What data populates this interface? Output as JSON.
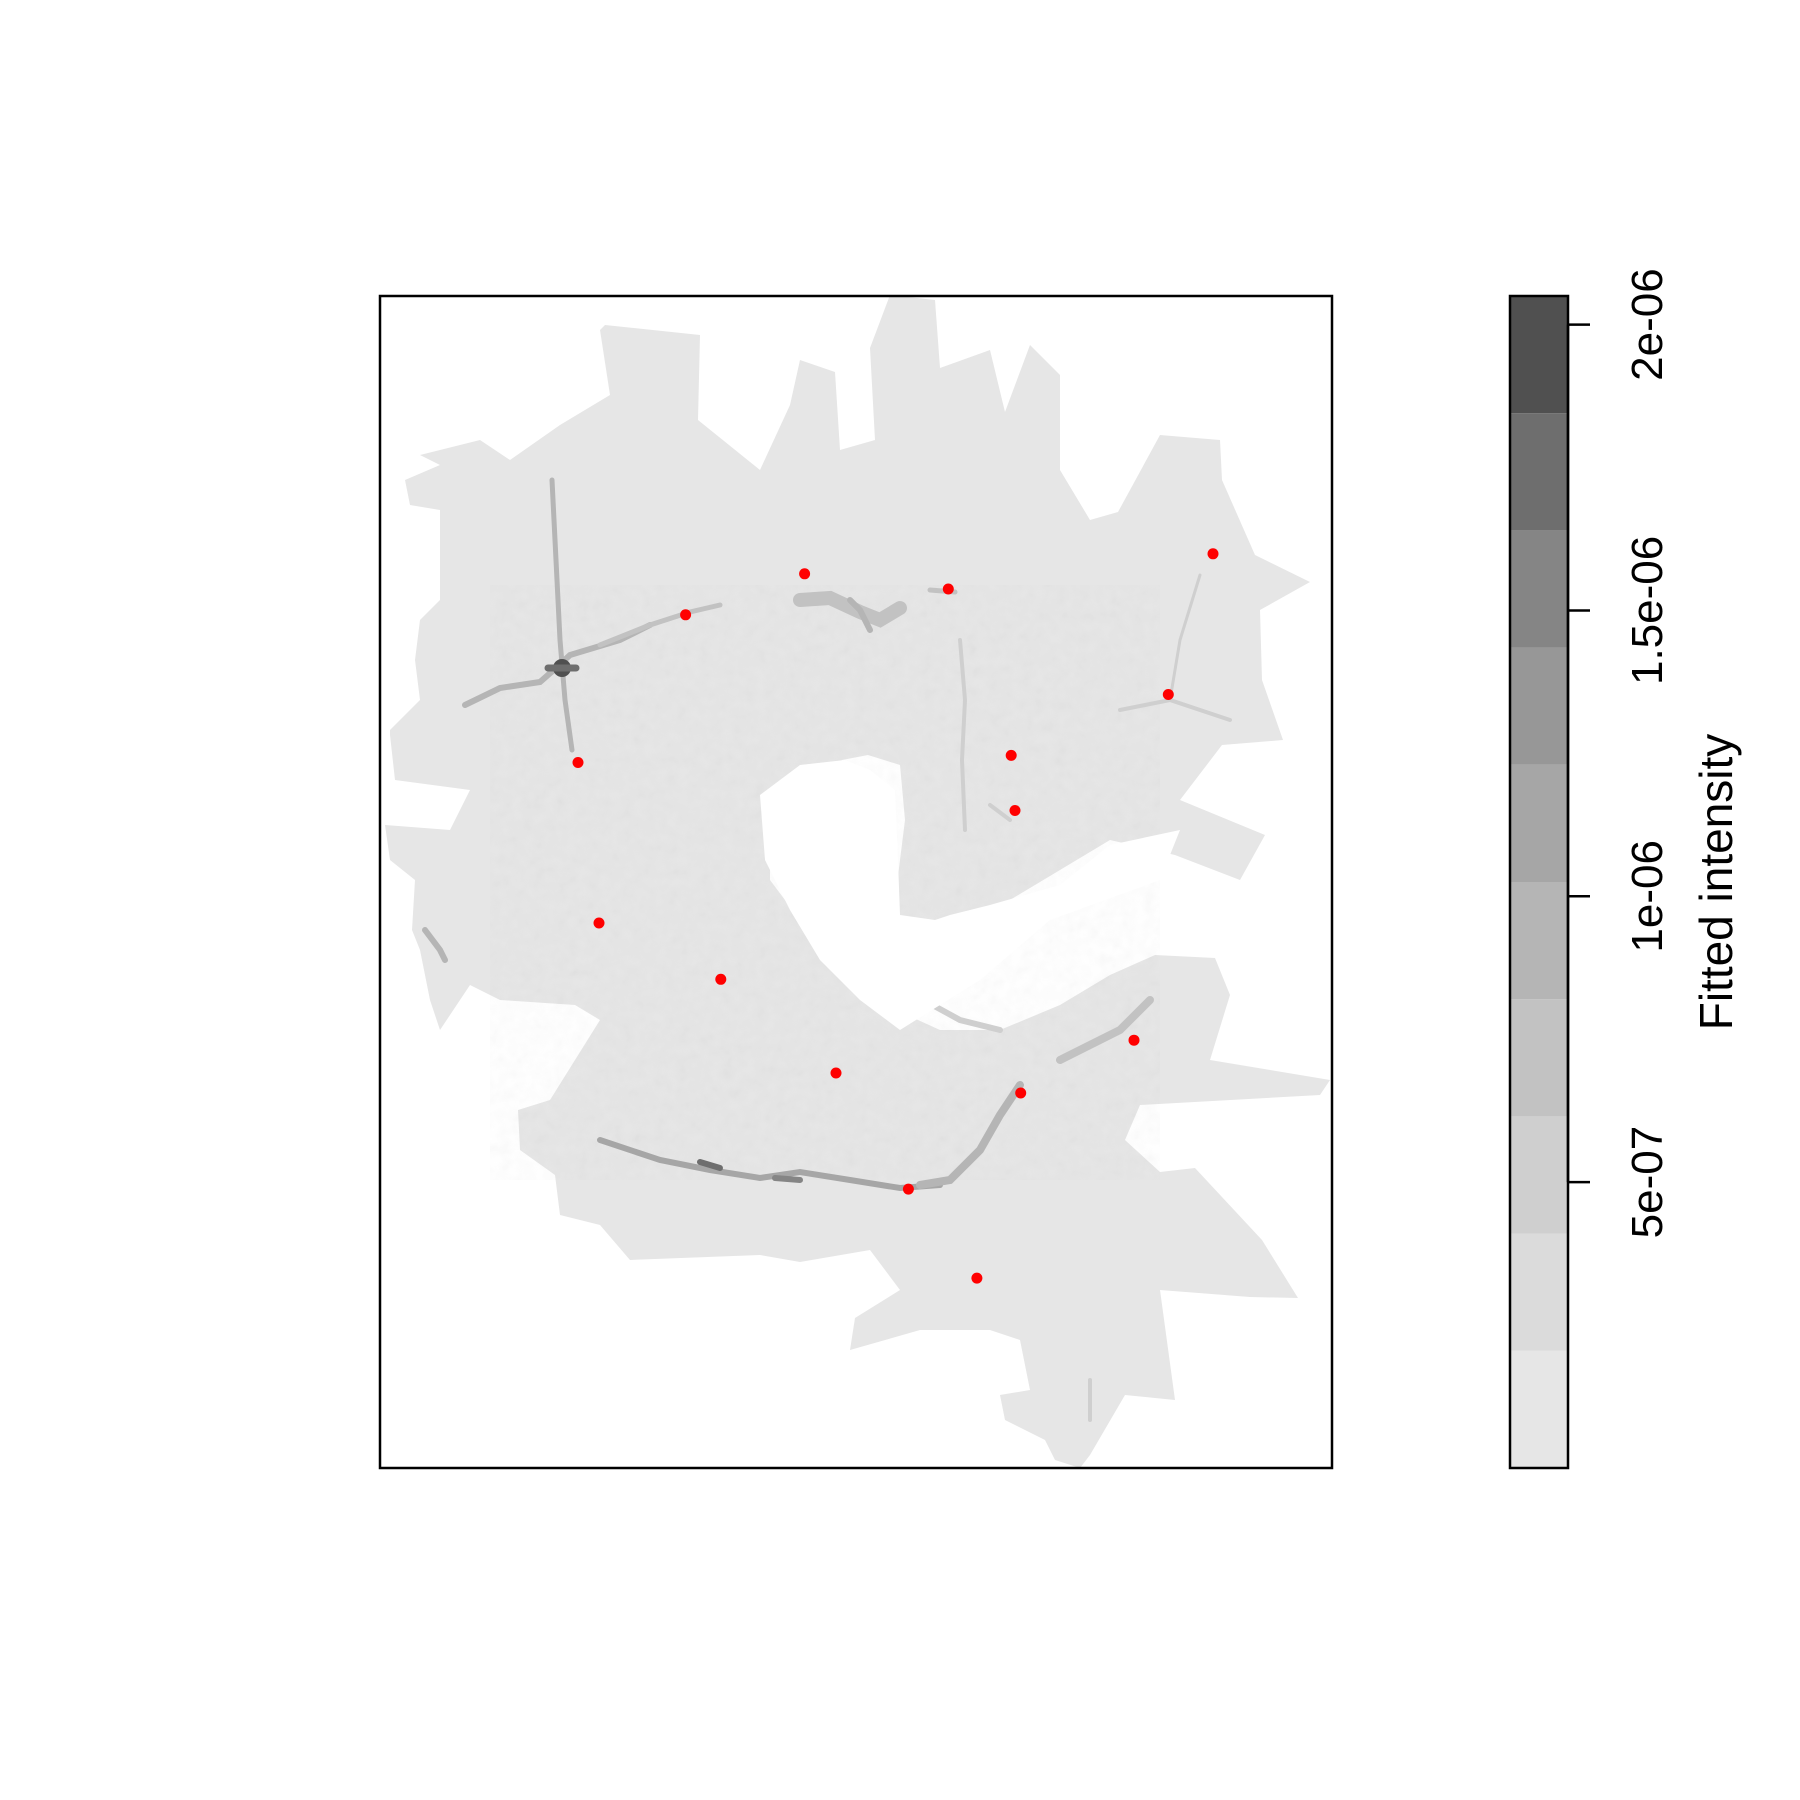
{
  "chart_data": {
    "type": "heatmap",
    "title": "",
    "xlabel": "",
    "ylabel": "",
    "axes_shown": false,
    "grid": false,
    "background": "#ffffff",
    "region": {
      "description_free": true,
      "fill_color": "#e6e6e6"
    },
    "colorbar": {
      "title": "Fitted intensity",
      "range": [
        0,
        2.05e-06
      ],
      "ticks": [
        {
          "value": 5e-07,
          "label": "5e-07"
        },
        {
          "value": 1e-06,
          "label": "1e-06"
        },
        {
          "value": 1.5e-06,
          "label": "1.5e-06"
        },
        {
          "value": 2e-06,
          "label": "2e-06"
        }
      ],
      "levels": [
        {
          "from": 0,
          "to": 2.05e-07,
          "color": "#e6e6e6"
        },
        {
          "from": 2.05e-07,
          "to": 4.1e-07,
          "color": "#dbdbdb"
        },
        {
          "from": 4.1e-07,
          "to": 6.15e-07,
          "color": "#cfcfcf"
        },
        {
          "from": 6.15e-07,
          "to": 8.2e-07,
          "color": "#c2c2c2"
        },
        {
          "from": 8.2e-07,
          "to": 1.025e-06,
          "color": "#b5b5b5"
        },
        {
          "from": 1.025e-06,
          "to": 1.23e-06,
          "color": "#a6a6a6"
        },
        {
          "from": 1.23e-06,
          "to": 1.435e-06,
          "color": "#979797"
        },
        {
          "from": 1.435e-06,
          "to": 1.64e-06,
          "color": "#858585"
        },
        {
          "from": 1.64e-06,
          "to": 1.845e-06,
          "color": "#6e6e6e"
        },
        {
          "from": 1.845e-06,
          "to": 2.05e-06,
          "color": "#505050"
        }
      ]
    },
    "points": {
      "color": "#ff0000",
      "xy": [
        [
          0.446,
          0.763
        ],
        [
          0.597,
          0.75
        ],
        [
          0.321,
          0.728
        ],
        [
          0.875,
          0.78
        ],
        [
          0.208,
          0.602
        ],
        [
          0.828,
          0.66
        ],
        [
          0.663,
          0.608
        ],
        [
          0.667,
          0.561
        ],
        [
          0.23,
          0.465
        ],
        [
          0.358,
          0.417
        ],
        [
          0.479,
          0.337
        ],
        [
          0.792,
          0.365
        ],
        [
          0.673,
          0.32
        ],
        [
          0.555,
          0.238
        ],
        [
          0.627,
          0.162
        ]
      ]
    }
  }
}
